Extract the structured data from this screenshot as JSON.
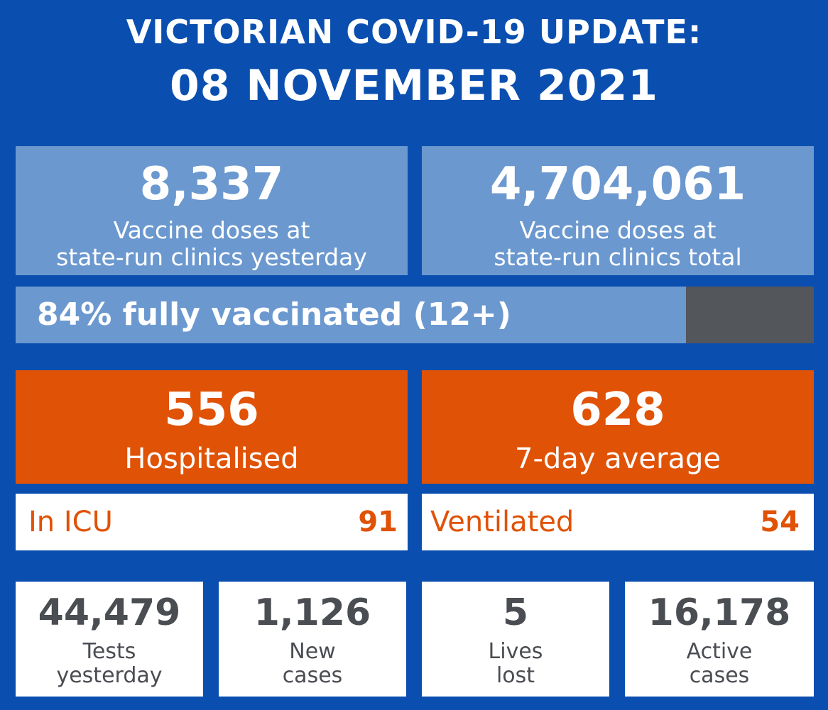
{
  "header": {
    "line1": "VICTORIAN COVID-19 UPDATE:",
    "line2": "08 NOVEMBER 2021"
  },
  "vaccine": {
    "yesterday_value": "8,337",
    "yesterday_label_1": "Vaccine doses at",
    "yesterday_label_2": "state-run clinics yesterday",
    "total_value": "4,704,061",
    "total_label_1": "Vaccine doses at",
    "total_label_2": "state-run clinics total"
  },
  "progress": {
    "label": "84% fully vaccinated (12+)",
    "fraction": 0.84
  },
  "hospital": {
    "hospitalised_value": "556",
    "hospitalised_label": "Hospitalised",
    "average_value": "628",
    "average_label": "7-day average",
    "icu_label": "In ICU",
    "icu_value": "91",
    "ventilated_label": "Ventilated",
    "ventilated_value": "54"
  },
  "stats": [
    {
      "value": "44,479",
      "label1": "Tests",
      "label2": "yesterday"
    },
    {
      "value": "1,126",
      "label1": "New",
      "label2": "cases"
    },
    {
      "value": "5",
      "label1": "Lives",
      "label2": "lost"
    },
    {
      "value": "16,178",
      "label1": "Active",
      "label2": "cases"
    }
  ],
  "colors": {
    "background": "#0a4fb0",
    "light_blue": "#6b98cf",
    "orange": "#e05206",
    "dark_gray": "#53565b"
  }
}
